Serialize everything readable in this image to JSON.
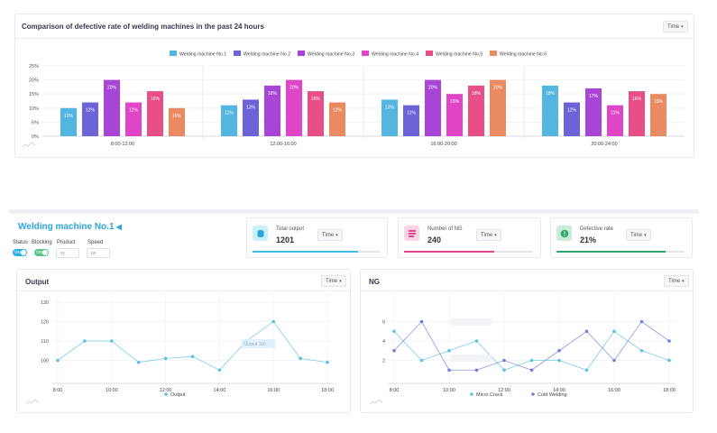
{
  "top_card": {
    "title": "Comparison of defective rate of welding machines in the past 24 hours",
    "time_label": "Time"
  },
  "machine": {
    "title": "Welding machine No.1",
    "status_label": "Status",
    "blocking_label": "Blocking",
    "product_label": "Product",
    "speed_label": "Speed",
    "status_toggle": "ON",
    "blocking_toggle": "ON",
    "product_placeholder": "xy",
    "speed_placeholder": "px"
  },
  "kpis": [
    {
      "label": "Total output",
      "value": "1201",
      "time_label": "Time",
      "color": "#3dc0e8",
      "icon_bg": "#c9f0fa",
      "fill": 0.83
    },
    {
      "label": "Number of NG",
      "value": "240",
      "time_label": "Time",
      "color": "#e04a8a",
      "icon_bg": "#fad3e4",
      "fill": 0.7
    },
    {
      "label": "Defective rate",
      "value": "21%",
      "time_label": "Time",
      "color": "#2ea56a",
      "icon_bg": "#c8ecd8",
      "fill": 0.85
    }
  ],
  "output_card": {
    "title": "Output",
    "time_label": "Time"
  },
  "ng_card": {
    "title": "NG",
    "time_label": "Time"
  },
  "chart_data": [
    {
      "type": "bar",
      "title": "Comparison of defective rate of welding machines in the past 24 hours",
      "categories": [
        "8:00-12:00",
        "12:00-16:00",
        "16:00-20:00",
        "20:00-24:00"
      ],
      "yticks": [
        "0%",
        "5%",
        "10%",
        "15%",
        "20%",
        "25%"
      ],
      "ylim": [
        0,
        25
      ],
      "legend_position": "top",
      "series": [
        {
          "name": "Welding machine No.1",
          "color": "#53b6e0",
          "values": [
            10,
            11,
            13,
            18
          ]
        },
        {
          "name": "Welding machine No.2",
          "color": "#6c63d9",
          "values": [
            12,
            13,
            11,
            12
          ]
        },
        {
          "name": "Welding machine No.3",
          "color": "#a945d6",
          "values": [
            20,
            18,
            20,
            17
          ]
        },
        {
          "name": "Welding machine No.4",
          "color": "#e045c8",
          "values": [
            12,
            20,
            15,
            11
          ]
        },
        {
          "name": "Welding machine No.5",
          "color": "#e74f86",
          "values": [
            16,
            16,
            18,
            16
          ]
        },
        {
          "name": "Welding machine No.6",
          "color": "#ea8a61",
          "values": [
            10,
            12,
            20,
            15
          ]
        }
      ],
      "data_labels": [
        [
          "10%",
          "12%",
          "20%",
          "12%",
          "16%",
          "10%"
        ],
        [
          "11%",
          "13%",
          "18%",
          "20%",
          "16%",
          "12%"
        ],
        [
          "13%",
          "11%",
          "20%",
          "15%",
          "18%",
          "20%"
        ],
        [
          "18%",
          "12%",
          "17%",
          "11%",
          "16%",
          "15%"
        ]
      ]
    },
    {
      "type": "line",
      "title": "Output",
      "x": [
        "8:00",
        "9:00",
        "10:00",
        "11:00",
        "12:00",
        "13:00",
        "14:00",
        "15:00",
        "16:00",
        "17:00",
        "18:00"
      ],
      "xticks": [
        "8:00",
        "10:00",
        "12:00",
        "14:00",
        "16:00",
        "18:00"
      ],
      "yticks": [
        "100",
        "110",
        "120",
        "130"
      ],
      "ylim": [
        90,
        130
      ],
      "series": [
        {
          "name": "Output",
          "color": "#5bc1e6",
          "values": [
            100,
            110,
            110,
            99,
            101,
            102,
            95,
            110,
            120,
            101,
            99
          ]
        }
      ],
      "tooltip": "Output 110",
      "legend_position": "bottom"
    },
    {
      "type": "line",
      "title": "NG",
      "x": [
        "8:00",
        "9:00",
        "10:00",
        "11:00",
        "12:00",
        "13:00",
        "14:00",
        "15:00",
        "16:00",
        "17:00",
        "18:00"
      ],
      "xticks": [
        "8:00",
        "10:00",
        "12:00",
        "14:00",
        "16:00",
        "18:00"
      ],
      "yticks": [
        "2",
        "4",
        "6"
      ],
      "ylim": [
        0,
        8
      ],
      "series": [
        {
          "name": "Micro Crack",
          "color": "#5bc1e6",
          "values": [
            5,
            2,
            3,
            4,
            1,
            2,
            2,
            1,
            5,
            3,
            2
          ]
        },
        {
          "name": "Cold Welding",
          "color": "#6f7fd8",
          "values": [
            3,
            6,
            1,
            1,
            2,
            1,
            3,
            5,
            2,
            6,
            4
          ]
        }
      ],
      "legend_position": "bottom"
    }
  ]
}
